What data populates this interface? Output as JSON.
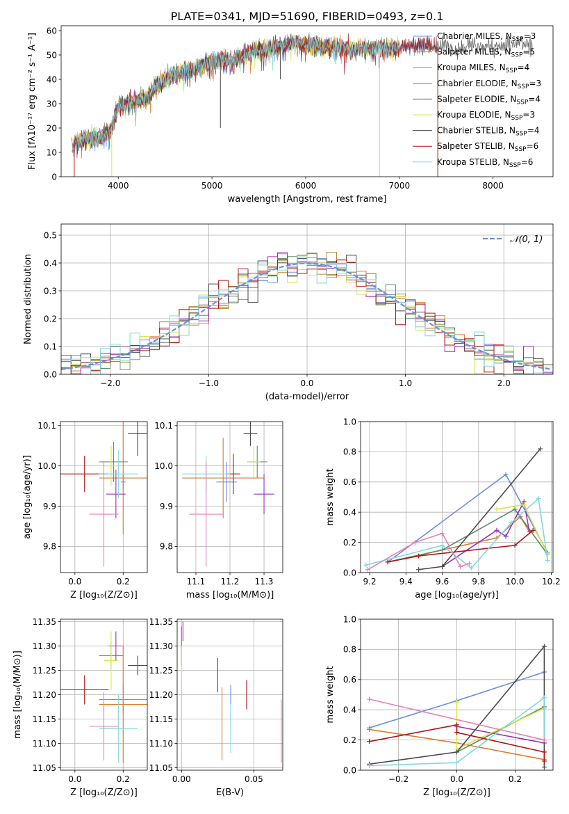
{
  "figure": {
    "title": "PLATE=0341, MJD=51690, FIBERID=0493, z=0.1"
  },
  "models": [
    {
      "name": "Chabrier MILES",
      "nssp": "3",
      "color": "#6b8fe0"
    },
    {
      "name": "Salpeter MILES",
      "nssp": "5",
      "color": "#e07a2c"
    },
    {
      "name": "Kroupa MILES",
      "nssp": "4",
      "color": "#b8862f"
    },
    {
      "name": "Chabrier ELODIE",
      "nssp": "3",
      "color": "#5e8a6a"
    },
    {
      "name": "Salpeter ELODIE",
      "nssp": "4",
      "color": "#9b30b8"
    },
    {
      "name": "Kroupa ELODIE",
      "nssp": "3",
      "color": "#d4e84a"
    },
    {
      "name": "Chabrier STELIB",
      "nssp": "4",
      "color": "#4a4a4a"
    },
    {
      "name": "Salpeter STELIB",
      "nssp": "6",
      "color": "#b01414"
    },
    {
      "name": "Kroupa STELIB",
      "nssp": "6",
      "color": "#7fd8e0"
    }
  ],
  "nssp_prefix": "N",
  "nssp_sub": "SSP",
  "chart_data": [
    {
      "id": "spectrum",
      "type": "line",
      "xlabel": "wavelength [Angstrom, rest frame]",
      "ylabel": "Flux [fλ10⁻¹⁷ erg cm⁻² s⁻¹ A⁻¹]",
      "xlim": [
        3390,
        8640
      ],
      "ylim": [
        0,
        62
      ],
      "xticks": [
        4000,
        5000,
        6000,
        7000,
        8000
      ],
      "yticks": [
        0,
        10,
        20,
        30,
        40,
        50,
        60
      ],
      "data_range": [
        3500,
        8420
      ],
      "envelope": [
        [
          3500,
          12
        ],
        [
          3550,
          14
        ],
        [
          3600,
          15
        ],
        [
          3700,
          16
        ],
        [
          3800,
          16
        ],
        [
          3900,
          18
        ],
        [
          3950,
          22
        ],
        [
          4000,
          29
        ],
        [
          4100,
          30
        ],
        [
          4200,
          31
        ],
        [
          4300,
          32
        ],
        [
          4400,
          37
        ],
        [
          4500,
          40
        ],
        [
          4600,
          42
        ],
        [
          4700,
          43
        ],
        [
          4800,
          44
        ],
        [
          4900,
          46
        ],
        [
          5000,
          47
        ],
        [
          5100,
          48
        ],
        [
          5200,
          47
        ],
        [
          5300,
          49
        ],
        [
          5400,
          51
        ],
        [
          5500,
          52
        ],
        [
          5600,
          52
        ],
        [
          5700,
          53
        ],
        [
          5800,
          54
        ],
        [
          5900,
          55
        ],
        [
          6000,
          54
        ],
        [
          6100,
          54
        ],
        [
          6200,
          53
        ],
        [
          6300,
          53
        ],
        [
          6400,
          53
        ],
        [
          6500,
          52
        ],
        [
          6600,
          53
        ],
        [
          6700,
          52
        ],
        [
          6800,
          53
        ],
        [
          6900,
          52
        ],
        [
          7000,
          53
        ],
        [
          7100,
          54
        ],
        [
          7200,
          54
        ],
        [
          7300,
          54
        ],
        [
          7400,
          53
        ],
        [
          7500,
          55
        ],
        [
          7600,
          52
        ],
        [
          7700,
          53
        ],
        [
          7800,
          54
        ],
        [
          7900,
          54
        ],
        [
          8000,
          53
        ],
        [
          8100,
          54
        ],
        [
          8200,
          54
        ],
        [
          8300,
          55
        ],
        [
          8420,
          54
        ]
      ],
      "drops": [
        {
          "x": 3930,
          "y0": 0,
          "model": 5
        },
        {
          "x": 6790,
          "y0": 0,
          "model": 5
        },
        {
          "x": 7410,
          "y0": 0,
          "model": 7
        },
        {
          "x": 3530,
          "y0": 0,
          "model": 7
        },
        {
          "x": 5090,
          "y0": 20,
          "model": 6
        },
        {
          "x": 5730,
          "y0": 40,
          "model": 6
        }
      ]
    },
    {
      "id": "residuals",
      "type": "step",
      "xlabel": "(data-model)/error",
      "ylabel": "Normed distribution",
      "xlim": [
        -2.5,
        2.5
      ],
      "ylim": [
        0,
        0.54
      ],
      "xticks": [
        -2,
        -1,
        0,
        1,
        2
      ],
      "yticks": [
        0,
        0.1,
        0.2,
        0.3,
        0.4,
        0.5
      ],
      "bin_width": 0.1,
      "gauss_label": "𝒩(0, 1)",
      "gauss_color": "#6b8fe0"
    },
    {
      "id": "age-vs-z",
      "type": "errorbar",
      "xlabel": "Z [log₁₀(Z/Z⊙)]",
      "ylabel": "age  [log₁₀(age/yr)]",
      "xlim": [
        -0.06,
        0.3
      ],
      "ylim": [
        9.735,
        10.11
      ],
      "xticks": [
        0.0,
        0.2
      ],
      "xtick_labels": [
        "0.0",
        "0.2"
      ],
      "yticks": [
        9.8,
        9.9,
        10.0,
        10.1
      ],
      "points": [
        {
          "model": 0,
          "x": 0.2,
          "y": 9.96,
          "dx": 0.01,
          "dy": 0.02
        },
        {
          "model": 1,
          "x": 0.2,
          "y": 9.97,
          "dx": 0.1,
          "dy": 0.14
        },
        {
          "model": 3,
          "x": 0.16,
          "y": 10.01,
          "dx": 0.06,
          "dy": 0.05
        },
        {
          "model": 4,
          "x": 0.17,
          "y": 9.93,
          "dx": 0.04,
          "dy": 0.06
        },
        {
          "model": 5,
          "x": 0.15,
          "y": 10.0,
          "dx": 0.03,
          "dy": 0.05
        },
        {
          "model": 6,
          "x": 0.26,
          "y": 10.08,
          "dx": 0.04,
          "dy": 0.055
        },
        {
          "model": 7,
          "x": 0.04,
          "y": 9.98,
          "dx": 0.1,
          "dy": 0.045
        },
        {
          "model": 8,
          "x": 0.18,
          "y": 9.98,
          "dx": 0.08,
          "dy": 0.06
        },
        {
          "model": 2,
          "x": 0.12,
          "y": 9.88,
          "dx": 0.06,
          "dy": 0.13,
          "color": "#e87fb5"
        }
      ]
    },
    {
      "id": "age-vs-mass",
      "type": "errorbar",
      "xlabel": "mass [log₁₀(M/M⊙)]",
      "ylabel": "",
      "xlim": [
        11.045,
        11.355
      ],
      "ylim": [
        9.735,
        10.11
      ],
      "xticks": [
        11.1,
        11.2,
        11.3
      ],
      "yticks": [
        9.8,
        9.9,
        10.0,
        10.1
      ],
      "points": [
        {
          "model": 0,
          "x": 11.19,
          "y": 9.96,
          "dx": 0.03,
          "dy": 0.05
        },
        {
          "model": 1,
          "x": 11.18,
          "y": 9.97,
          "dx": 0.12,
          "dy": 0.1
        },
        {
          "model": 3,
          "x": 11.28,
          "y": 10.01,
          "dx": 0.03,
          "dy": 0.04
        },
        {
          "model": 4,
          "x": 11.3,
          "y": 9.93,
          "dx": 0.03,
          "dy": 0.05
        },
        {
          "model": 5,
          "x": 11.27,
          "y": 10.01,
          "dx": 0.02,
          "dy": 0.04
        },
        {
          "model": 6,
          "x": 11.26,
          "y": 10.08,
          "dx": 0.02,
          "dy": 0.03
        },
        {
          "model": 7,
          "x": 11.21,
          "y": 9.98,
          "dx": 0.02,
          "dy": 0.05
        },
        {
          "model": 8,
          "x": 11.13,
          "y": 9.98,
          "dx": 0.07,
          "dy": 0.045
        },
        {
          "model": 2,
          "x": 11.13,
          "y": 9.88,
          "dx": 0.05,
          "dy": 0.13,
          "color": "#e87fb5"
        }
      ]
    },
    {
      "id": "mass-weight-vs-age",
      "type": "line",
      "xlabel": "age  [log₁₀(age/yr)]",
      "ylabel": "mass weight",
      "xlim": [
        9.15,
        10.21
      ],
      "ylim": [
        0,
        1
      ],
      "xticks": [
        9.2,
        9.4,
        9.6,
        9.8,
        10.0,
        10.2
      ],
      "yticks": [
        0,
        0.2,
        0.4,
        0.6,
        0.8,
        1.0
      ],
      "series": [
        {
          "model": 0,
          "x": [
            9.3,
            9.95,
            10.18
          ],
          "y": [
            0.07,
            0.65,
            0.13
          ]
        },
        {
          "model": 1,
          "x": [
            9.3,
            9.9,
            10.03,
            10.08
          ],
          "y": [
            0.07,
            0.23,
            0.37,
            0.27
          ]
        },
        {
          "model": 3,
          "x": [
            9.3,
            9.6,
            10.0,
            10.18
          ],
          "y": [
            0.07,
            0.15,
            0.42,
            0.12
          ]
        },
        {
          "model": 4,
          "x": [
            9.6,
            9.9,
            9.95,
            10.05,
            10.08
          ],
          "y": [
            0.04,
            0.28,
            0.24,
            0.47,
            0.27
          ]
        },
        {
          "model": 5,
          "x": [
            9.9,
            10.05,
            10.18
          ],
          "y": [
            0.42,
            0.45,
            0.12
          ]
        },
        {
          "model": 6,
          "x": [
            9.47,
            9.6,
            10.14
          ],
          "y": [
            0.02,
            0.04,
            0.82
          ]
        },
        {
          "model": 7,
          "x": [
            9.3,
            9.47,
            10.0,
            10.1
          ],
          "y": [
            0.07,
            0.11,
            0.18,
            0.28
          ]
        },
        {
          "model": 8,
          "x": [
            9.18,
            9.6,
            9.76,
            9.98,
            10.13,
            10.18
          ],
          "y": [
            0.05,
            0.18,
            0.03,
            0.33,
            0.49,
            0.08
          ]
        },
        {
          "model": 2,
          "x": [
            9.19,
            9.45,
            9.6,
            9.7,
            9.75
          ],
          "y": [
            0.02,
            0.2,
            0.26,
            0.04,
            0.06
          ],
          "color": "#e87fb5"
        }
      ]
    },
    {
      "id": "mass-vs-z",
      "type": "errorbar",
      "xlabel": "Z [log₁₀(Z/Z⊙)]",
      "ylabel": "mass [log₁₀(M/M⊙)]",
      "xlim": [
        -0.06,
        0.3
      ],
      "ylim": [
        11.045,
        11.355
      ],
      "xticks": [
        0.0,
        0.2
      ],
      "xtick_labels": [
        "0.0",
        "0.2"
      ],
      "yticks": [
        11.05,
        11.1,
        11.15,
        11.2,
        11.25,
        11.3,
        11.35
      ],
      "points": [
        {
          "model": 0,
          "x": 0.2,
          "y": 11.19,
          "dx": 0.1,
          "dy": 0.03
        },
        {
          "model": 1,
          "x": 0.2,
          "y": 11.18,
          "dx": 0.1,
          "dy": 0.12
        },
        {
          "model": 3,
          "x": 0.15,
          "y": 11.28,
          "dx": 0.05,
          "dy": 0.03
        },
        {
          "model": 4,
          "x": 0.17,
          "y": 11.3,
          "dx": 0.03,
          "dy": 0.03
        },
        {
          "model": 5,
          "x": 0.15,
          "y": 11.27,
          "dx": 0.03,
          "dy": 0.06
        },
        {
          "model": 6,
          "x": 0.26,
          "y": 11.26,
          "dx": 0.04,
          "dy": 0.02
        },
        {
          "model": 7,
          "x": 0.04,
          "y": 11.21,
          "dx": 0.1,
          "dy": 0.03
        },
        {
          "model": 8,
          "x": 0.18,
          "y": 11.13,
          "dx": 0.08,
          "dy": 0.07
        },
        {
          "model": 2,
          "x": 0.12,
          "y": 11.135,
          "dx": 0.06,
          "dy": 0.07,
          "color": "#e87fb5"
        }
      ]
    },
    {
      "id": "mass-vs-ebv",
      "type": "errorbar",
      "xlabel": "E(B-V)",
      "ylabel": "",
      "xlim": [
        -0.003,
        0.07
      ],
      "ylim": [
        11.045,
        11.355
      ],
      "xticks": [
        0.0,
        0.05
      ],
      "xtick_labels": [
        "0.00",
        "0.05"
      ],
      "yticks": [
        11.05,
        11.1,
        11.15,
        11.2,
        11.25,
        11.3,
        11.35
      ],
      "points": [
        {
          "model": 0,
          "x": 0.034,
          "y": 11.17,
          "dx": 0,
          "dy": 0.05
        },
        {
          "model": 1,
          "x": 0.028,
          "y": 11.14,
          "dx": 0,
          "dy": 0.075
        },
        {
          "model": 3,
          "x": 0.0,
          "y": 11.3,
          "dx": 0,
          "dy": 0.04
        },
        {
          "model": 4,
          "x": 0.001,
          "y": 11.33,
          "dx": 0,
          "dy": 0.02
        },
        {
          "model": 5,
          "x": 0.0,
          "y": 11.27,
          "dx": 0,
          "dy": 0.03
        },
        {
          "model": 6,
          "x": 0.025,
          "y": 11.24,
          "dx": 0,
          "dy": 0.035
        },
        {
          "model": 7,
          "x": 0.045,
          "y": 11.2,
          "dx": 0,
          "dy": 0.03
        },
        {
          "model": 8,
          "x": 0.034,
          "y": 11.13,
          "dx": 0,
          "dy": 0.05
        },
        {
          "model": 2,
          "x": 0.069,
          "y": 11.125,
          "dx": 0,
          "dy": 0.065,
          "color": "#e87fb5"
        }
      ]
    },
    {
      "id": "mass-weight-vs-z",
      "type": "line",
      "xlabel": "Z [log₁₀(Z/Z⊙)]",
      "ylabel": "mass weight",
      "xlim": [
        -0.33,
        0.33
      ],
      "ylim": [
        0,
        1
      ],
      "xticks": [
        -0.2,
        0.0,
        0.2
      ],
      "xtick_labels": [
        "−0.2",
        "0.0",
        "0.2"
      ],
      "yticks": [
        0,
        0.2,
        0.4,
        0.6,
        0.8,
        1.0
      ],
      "series": [
        {
          "model": 0,
          "x": [
            -0.3,
            0.0,
            0.3
          ],
          "y": [
            0.28,
            0.46,
            0.65
          ]
        },
        {
          "model": 1,
          "x": [
            -0.3,
            0.0,
            0.3
          ],
          "y": [
            0.27,
            0.18,
            0.07
          ]
        },
        {
          "model": 3,
          "x": [
            0.0,
            0.3
          ],
          "y": [
            0.12,
            0.42
          ]
        },
        {
          "model": 4,
          "x": [
            0.0,
            0.3
          ],
          "y": [
            0.29,
            0.18
          ]
        },
        {
          "model": 5,
          "x": [
            0.0,
            0.0,
            0.3,
            0.3
          ],
          "y": [
            0.45,
            0.14,
            0.41,
            0.12
          ]
        },
        {
          "model": 6,
          "x": [
            -0.3,
            0.0,
            0.3,
            0.3
          ],
          "y": [
            0.04,
            0.12,
            0.82,
            0.02
          ]
        },
        {
          "model": 7,
          "x": [
            -0.3,
            0.0,
            0.0,
            0.3,
            0.3
          ],
          "y": [
            0.19,
            0.3,
            0.25,
            0.12,
            0.06
          ]
        },
        {
          "model": 8,
          "x": [
            -0.3,
            0.0,
            0.3,
            0.3
          ],
          "y": [
            0.03,
            0.05,
            0.48,
            0.2
          ]
        },
        {
          "model": 2,
          "x": [
            -0.3,
            0.3
          ],
          "y": [
            0.47,
            0.2
          ],
          "color": "#e87fb5"
        }
      ]
    }
  ]
}
